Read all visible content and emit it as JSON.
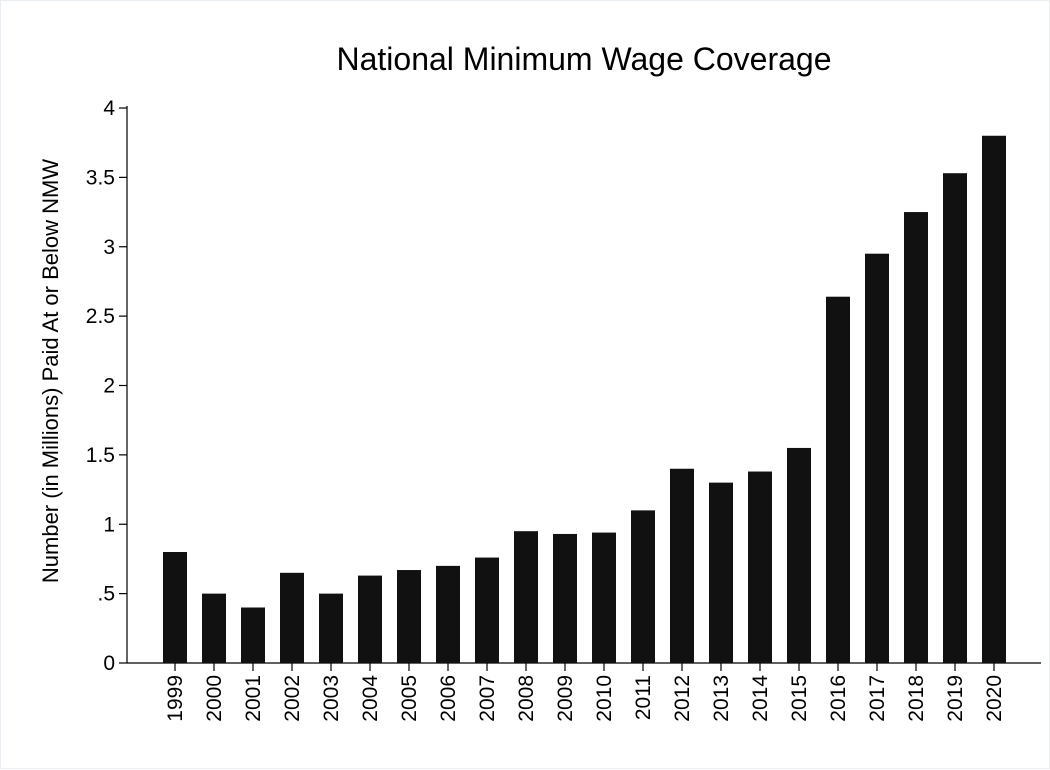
{
  "chart_data": {
    "type": "bar",
    "title": "National Minimum Wage Coverage",
    "xlabel": "",
    "ylabel": "Number (in Millions) Paid At or Below NMW",
    "categories": [
      "1999",
      "2000",
      "2001",
      "2002",
      "2003",
      "2004",
      "2005",
      "2006",
      "2007",
      "2008",
      "2009",
      "2010",
      "2011",
      "2012",
      "2013",
      "2014",
      "2015",
      "2016",
      "2017",
      "2018",
      "2019",
      "2020"
    ],
    "values": [
      0.8,
      0.5,
      0.4,
      0.65,
      0.5,
      0.63,
      0.67,
      0.7,
      0.76,
      0.95,
      0.93,
      0.94,
      1.1,
      1.4,
      1.3,
      1.38,
      1.55,
      2.64,
      2.95,
      3.25,
      3.53,
      3.8
    ],
    "ylim": [
      0,
      4
    ],
    "yticks": [
      0,
      0.5,
      1,
      1.5,
      2,
      2.5,
      3,
      3.5,
      4
    ],
    "ytick_labels": [
      "0",
      ".5",
      "1",
      "1.5",
      "2",
      "2.5",
      "3",
      "3.5",
      "4"
    ],
    "grid": false,
    "bar_color": "#111111"
  }
}
